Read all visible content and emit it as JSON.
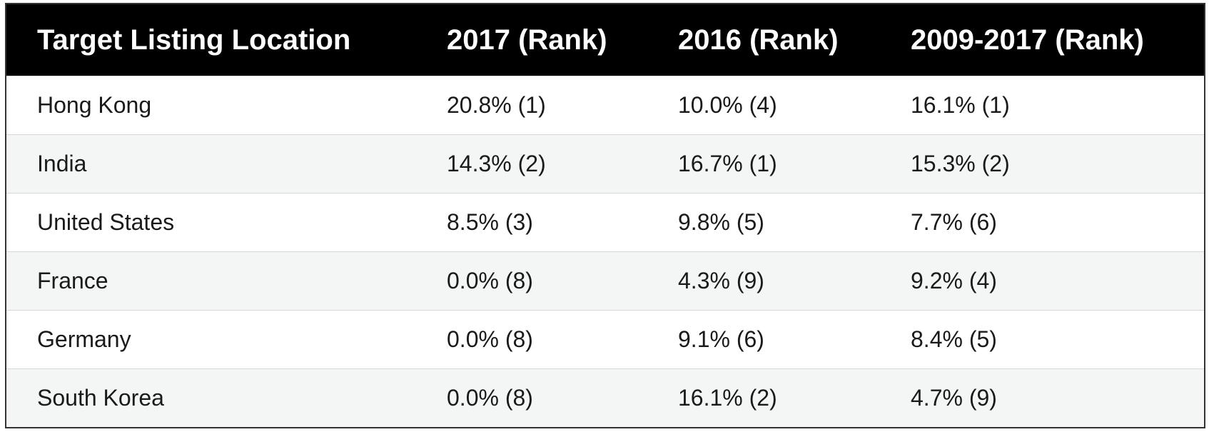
{
  "table": {
    "header": [
      "Target Listing Location",
      "2017 (Rank)",
      "2016 (Rank)",
      "2009-2017 (Rank)"
    ],
    "rows": [
      [
        "Hong Kong",
        "20.8% (1)",
        "10.0% (4)",
        "16.1% (1)"
      ],
      [
        "India",
        "14.3% (2)",
        "16.7% (1)",
        "15.3% (2)"
      ],
      [
        "United States",
        "8.5% (3)",
        "9.8% (5)",
        "7.7% (6)"
      ],
      [
        "France",
        "0.0% (8)",
        "4.3% (9)",
        "9.2% (4)"
      ],
      [
        "Germany",
        "0.0% (8)",
        "9.1% (6)",
        "8.4% (5)"
      ],
      [
        "South Korea",
        "0.0% (8)",
        "16.1% (2)",
        "4.7% (9)"
      ]
    ]
  }
}
